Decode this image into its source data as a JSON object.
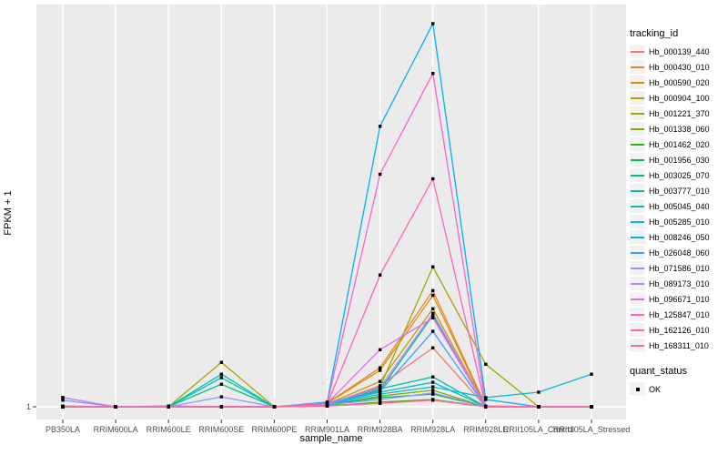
{
  "figure": {
    "x_axis_title": "sample_name",
    "y_axis_title": "FPKM + 1",
    "y_tick_label": "1",
    "legend_tracking_title": "tracking_id",
    "legend_quant_title": "quant_status",
    "legend_quant_ok_label": "OK",
    "colors": {
      "panel_bg": "#EBEBEB",
      "gridline": "#FFFFFF",
      "point": "#000000",
      "tick_text": "#4D4D4D",
      "legend_key_bg": "#F2F2F2"
    }
  },
  "chart_data": {
    "type": "line",
    "title": "",
    "xlabel": "sample_name",
    "ylabel": "FPKM + 1",
    "legend_position": "right",
    "grid": "white major gridlines on gray panel",
    "y_axis": {
      "tick_labels": [
        "1"
      ],
      "baseline_value": 1,
      "values_unit": "relative height, % of tallest peak (only the tick '1' is labeled on the axis)"
    },
    "point_marker": {
      "shape": "square",
      "color": "#000000",
      "legend": "quant_status",
      "label": "OK"
    },
    "categories": [
      "PB350LA",
      "RRIM600LA",
      "RRIM600LE",
      "RRIM600SE",
      "RRIM600PE",
      "RRIM901LA",
      "RRIM928BA",
      "RRIM928LA",
      "RRIM928LE",
      "RRII105LA_Control",
      "RRII105LA_Stressed"
    ],
    "series": [
      {
        "name": "Hb_000139_440",
        "color": "#F8766D",
        "values": [
          0,
          0,
          0,
          0,
          0,
          0.5,
          5.5,
          15.4,
          0,
          0,
          0
        ]
      },
      {
        "name": "Hb_000430_010",
        "color": "#EA8331",
        "values": [
          0.2,
          0,
          0,
          0,
          0,
          0.9,
          10.2,
          30.3,
          0.2,
          0,
          0
        ]
      },
      {
        "name": "Hb_000590_020",
        "color": "#D89000",
        "values": [
          0,
          0,
          0,
          0,
          0,
          0.9,
          9.5,
          29.1,
          0,
          0,
          0
        ]
      },
      {
        "name": "Hb_000904_100",
        "color": "#C09B00",
        "values": [
          0,
          0,
          0,
          0,
          0,
          0.7,
          6.6,
          25.6,
          0,
          0,
          0
        ]
      },
      {
        "name": "Hb_001221_370",
        "color": "#A3A500",
        "values": [
          2.4,
          0,
          0,
          11.6,
          0,
          0.5,
          5.2,
          36.5,
          11.1,
          0,
          0
        ]
      },
      {
        "name": "Hb_001338_060",
        "color": "#7CAE00",
        "values": [
          0,
          0,
          0,
          0,
          0,
          0.2,
          2.8,
          4.3,
          0,
          0,
          0
        ]
      },
      {
        "name": "Hb_001462_020",
        "color": "#39B600",
        "values": [
          0,
          0,
          0,
          0,
          0,
          0.2,
          1.2,
          1.9,
          0,
          0,
          0
        ]
      },
      {
        "name": "Hb_001956_030",
        "color": "#00BB4E",
        "values": [
          0,
          0,
          0,
          0,
          0,
          0.5,
          2.4,
          3.3,
          0,
          0,
          0
        ]
      },
      {
        "name": "Hb_003025_070",
        "color": "#00BF7D",
        "values": [
          0,
          0,
          0,
          5.9,
          0,
          0.7,
          4.3,
          23.9,
          0,
          0,
          0
        ]
      },
      {
        "name": "Hb_003777_010",
        "color": "#00C1A3",
        "values": [
          0,
          0,
          0,
          8.5,
          0,
          0.9,
          4.7,
          7.8,
          0,
          0,
          0
        ]
      },
      {
        "name": "Hb_005045_040",
        "color": "#00BFC4",
        "values": [
          0,
          0,
          0,
          7.6,
          0,
          0.7,
          3.8,
          6.4,
          0,
          0,
          0
        ]
      },
      {
        "name": "Hb_005285_010",
        "color": "#00BAE0",
        "values": [
          0,
          0,
          0,
          0,
          0,
          0.5,
          3.3,
          5.2,
          2.4,
          3.8,
          8.5
        ]
      },
      {
        "name": "Hb_008246_050",
        "color": "#00B0F6",
        "values": [
          0,
          0,
          0.2,
          0,
          0,
          1.2,
          73.2,
          100,
          1.9,
          0,
          0
        ]
      },
      {
        "name": "Hb_026048_060",
        "color": "#35A2FF",
        "values": [
          0,
          0,
          0,
          0,
          0,
          0.7,
          4,
          19.7,
          0,
          0,
          0
        ]
      },
      {
        "name": "Hb_071586_010",
        "color": "#9590FF",
        "values": [
          1.7,
          0,
          0,
          2.6,
          0,
          0.5,
          1.9,
          3.6,
          0,
          0,
          0
        ]
      },
      {
        "name": "Hb_089173_010",
        "color": "#BF80FF",
        "values": [
          2.4,
          0,
          0,
          0,
          0,
          0.7,
          5,
          24.4,
          0,
          0,
          0
        ]
      },
      {
        "name": "Hb_096671_010",
        "color": "#E76BF3",
        "values": [
          0,
          0,
          0,
          0,
          0,
          0.9,
          14.9,
          23.2,
          0,
          0,
          0
        ]
      },
      {
        "name": "Hb_125847_010",
        "color": "#FD61D1",
        "values": [
          0,
          0,
          0,
          0,
          0,
          0.9,
          60.7,
          87,
          0.2,
          0,
          0
        ]
      },
      {
        "name": "Hb_162126_010",
        "color": "#FF62BC",
        "values": [
          0,
          0,
          0,
          0,
          0,
          0.7,
          34.4,
          59.5,
          0,
          0,
          0
        ]
      },
      {
        "name": "Hb_168311_010",
        "color": "#FF6A98",
        "values": [
          0,
          0,
          0,
          0,
          0,
          0.2,
          0.9,
          1.7,
          0,
          0,
          0
        ]
      }
    ]
  }
}
